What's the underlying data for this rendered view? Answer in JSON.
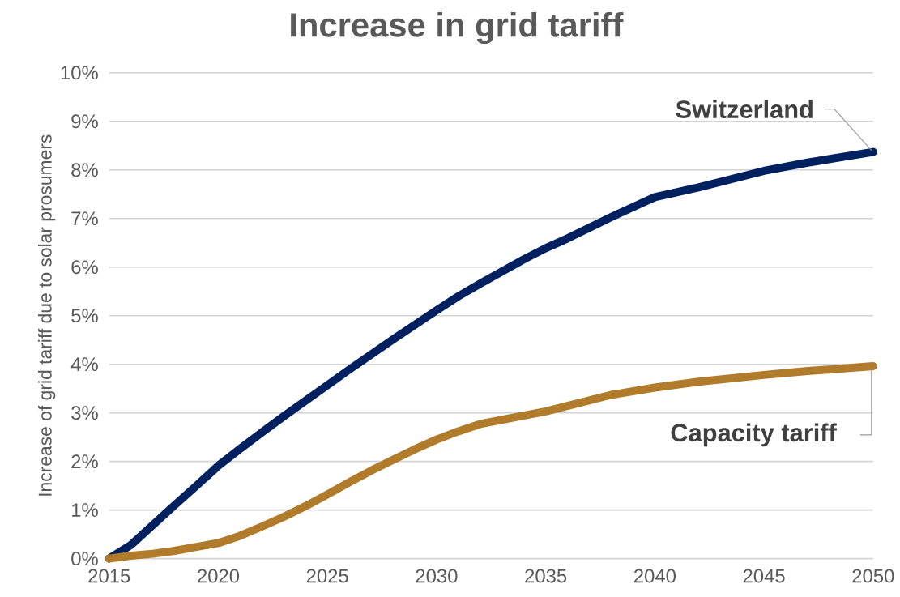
{
  "chart_data": {
    "type": "line",
    "title": "Increase in grid tariff",
    "ylabel": "Increase of grid tariff due to solar prosumers",
    "xlim": [
      2015,
      2050
    ],
    "xticks": [
      2015,
      2020,
      2025,
      2030,
      2035,
      2040,
      2045,
      2050
    ],
    "ylim": [
      0,
      10
    ],
    "yticks": [
      {
        "value": 0,
        "label": "0%"
      },
      {
        "value": 1,
        "label": "1%"
      },
      {
        "value": 2,
        "label": "2%"
      },
      {
        "value": 3,
        "label": "3%"
      },
      {
        "value": 4,
        "label": "4%"
      },
      {
        "value": 5,
        "label": "5%"
      },
      {
        "value": 6,
        "label": "6%"
      },
      {
        "value": 7,
        "label": "7%"
      },
      {
        "value": 8,
        "label": "8%"
      },
      {
        "value": 9,
        "label": "9%"
      },
      {
        "value": 10,
        "label": "10%"
      }
    ],
    "grid": "y",
    "legend": false,
    "marker": "none",
    "line_style": "solid",
    "series": [
      {
        "name": "Switzerland",
        "color": "#002060",
        "x": [
          2015,
          2016,
          2017,
          2018,
          2019,
          2020,
          2021,
          2022,
          2023,
          2024,
          2025,
          2026,
          2027,
          2028,
          2029,
          2030,
          2031,
          2032,
          2033,
          2034,
          2035,
          2036,
          2038,
          2040,
          2042,
          2045,
          2047,
          2050
        ],
        "values": [
          0,
          0.28,
          0.69,
          1.1,
          1.5,
          1.91,
          2.26,
          2.6,
          2.93,
          3.25,
          3.57,
          3.89,
          4.2,
          4.51,
          4.81,
          5.11,
          5.4,
          5.66,
          5.91,
          6.16,
          6.39,
          6.59,
          7.03,
          7.44,
          7.64,
          7.98,
          8.15,
          8.37
        ]
      },
      {
        "name": "Capacity tariff",
        "color": "#b07c2c",
        "x": [
          2015,
          2016,
          2017,
          2018,
          2019,
          2020,
          2021,
          2022,
          2023,
          2024,
          2025,
          2026,
          2027,
          2028,
          2029,
          2030,
          2031,
          2032,
          2035,
          2038,
          2040,
          2042,
          2045,
          2047,
          2050
        ],
        "values": [
          0,
          0.06,
          0.1,
          0.16,
          0.24,
          0.32,
          0.47,
          0.66,
          0.86,
          1.08,
          1.32,
          1.57,
          1.81,
          2.03,
          2.25,
          2.45,
          2.62,
          2.77,
          3.03,
          3.37,
          3.52,
          3.64,
          3.78,
          3.86,
          3.96
        ]
      }
    ]
  }
}
